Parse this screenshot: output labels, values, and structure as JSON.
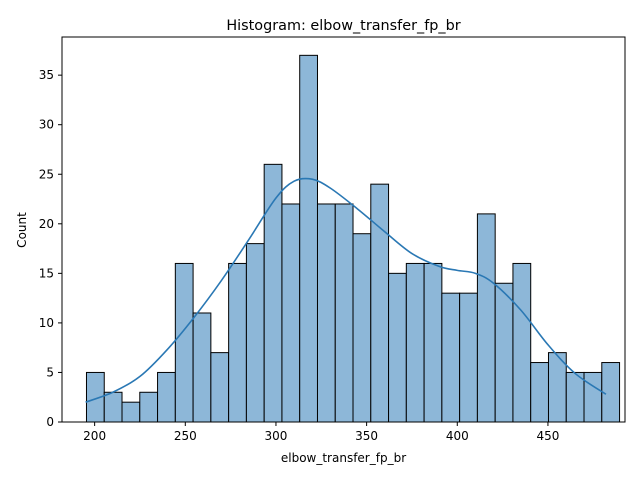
{
  "chart_data": {
    "type": "bar",
    "title": "Histogram: elbow_transfer_fp_br",
    "xlabel": "elbow_transfer_fp_br",
    "ylabel": "Count",
    "xlim": [
      182,
      492.5
    ],
    "ylim": [
      0,
      38.85
    ],
    "xticks": [
      200,
      250,
      300,
      350,
      400,
      450
    ],
    "yticks": [
      0,
      5,
      10,
      15,
      20,
      25,
      30,
      35
    ],
    "bin_start": 195.5,
    "bin_width": 9.8,
    "bin_counts": [
      5,
      3,
      2,
      3,
      5,
      16,
      11,
      7,
      16,
      18,
      26,
      22,
      37,
      22,
      22,
      19,
      24,
      15,
      16,
      16,
      13,
      13,
      21,
      14,
      16,
      6,
      7,
      5,
      5,
      6
    ],
    "series": [
      {
        "name": "",
        "kind": "kde",
        "x": [
          195,
          210,
          225,
          240,
          255,
          270,
          285,
          300,
          310,
          320,
          330,
          345,
          360,
          375,
          390,
          400,
          410,
          420,
          435,
          450,
          465,
          482
        ],
        "values": [
          2.0,
          3.0,
          4.6,
          7.3,
          10.6,
          14.3,
          18.4,
          22.6,
          24.3,
          24.5,
          23.6,
          21.5,
          19.2,
          17.0,
          15.7,
          15.3,
          15.0,
          14.0,
          11.3,
          7.8,
          4.9,
          2.8
        ]
      }
    ],
    "colors": {
      "bar_fill": "#8db7d8",
      "bar_edge": "#000000",
      "line": "#2a78b4"
    },
    "grid": false
  }
}
